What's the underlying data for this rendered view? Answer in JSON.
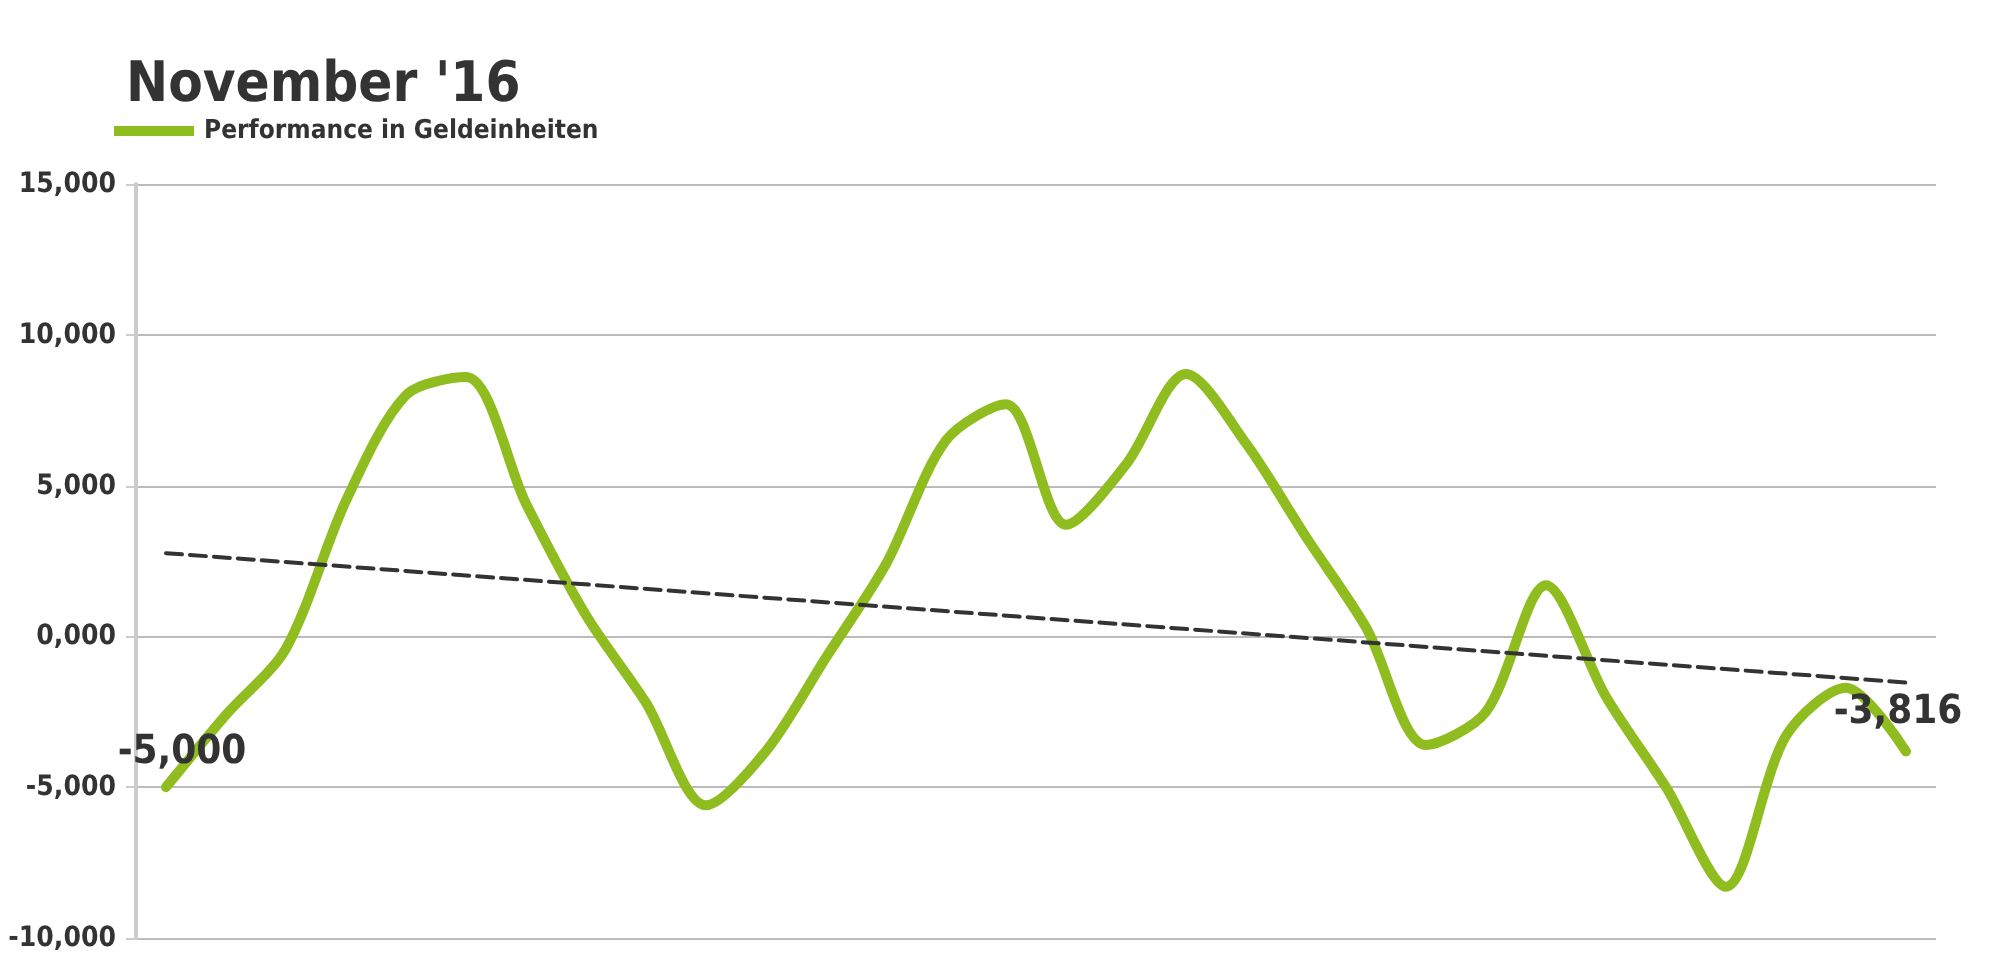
{
  "chart_data": {
    "type": "line",
    "title": "November '16",
    "categories": [
      null,
      null,
      null,
      null,
      null,
      null,
      null,
      null,
      null,
      null,
      null,
      null,
      null,
      null,
      null,
      null,
      null,
      null,
      null,
      null,
      null,
      null,
      null,
      null,
      null,
      null,
      null,
      null,
      null,
      null
    ],
    "series": [
      {
        "name": "Performance in Geldeinheiten",
        "color": "#8fbc1e",
        "line_style": "solid",
        "values": [
          -5000,
          -2600,
          -400,
          4500,
          8000,
          8600,
          4400,
          700,
          -2200,
          -5600,
          -3800,
          -700,
          2400,
          6500,
          7700,
          3700,
          5700,
          8700,
          6400,
          3300,
          300,
          -3600,
          -2500,
          1700,
          -2000,
          -5000,
          -8300,
          -3300,
          -1700,
          -3816
        ],
        "value_labels": [
          "-5,000",
          null,
          null,
          null,
          null,
          null,
          null,
          null,
          null,
          null,
          null,
          null,
          null,
          null,
          null,
          null,
          null,
          null,
          null,
          null,
          null,
          null,
          null,
          null,
          null,
          null,
          null,
          null,
          null,
          "-3,816"
        ]
      },
      {
        "type": "line",
        "color": "#333333",
        "line_style": "dashed",
        "values": [
          2760,
          null,
          null,
          null,
          null,
          null,
          null,
          null,
          null,
          null,
          null,
          null,
          null,
          null,
          null,
          null,
          null,
          null,
          null,
          null,
          null,
          null,
          null,
          null,
          null,
          null,
          null,
          null,
          null,
          -1530
        ]
      }
    ],
    "ylim": [
      -10000,
      15000
    ],
    "yticks": [
      {
        "value": -10000,
        "label": "-10,000"
      },
      {
        "value": -5000,
        "label": "-5,000"
      },
      {
        "value": 0,
        "label": "0,000"
      },
      {
        "value": 5000,
        "label": "5,000"
      },
      {
        "value": 10000,
        "label": "10,000"
      },
      {
        "value": 15000,
        "label": "15,000"
      }
    ],
    "grid": "y",
    "legend": "top left"
  }
}
